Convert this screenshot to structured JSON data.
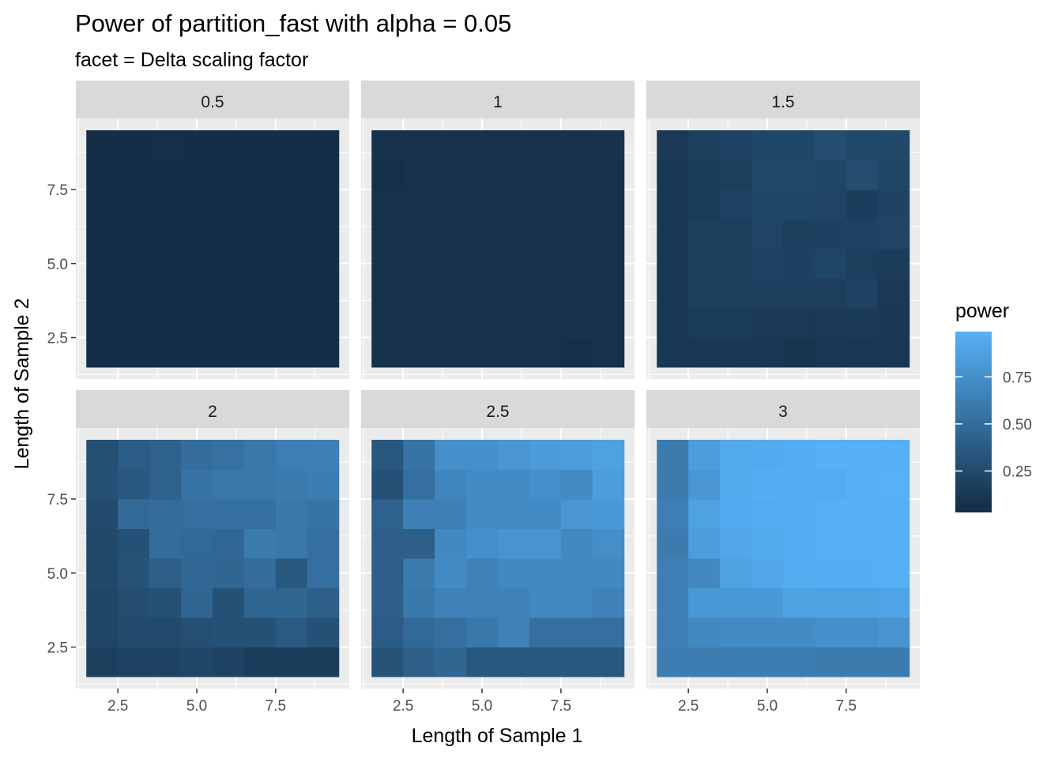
{
  "chart_data": {
    "type": "heatmap",
    "title": "Power of partition_fast with alpha = 0.05",
    "subtitle": "facet = Delta scaling factor",
    "xlabel": "Length of Sample 1",
    "ylabel": "Length of Sample 2",
    "x_ticks": [
      "2.5",
      "5.0",
      "7.5"
    ],
    "y_ticks": [
      "2.5",
      "5.0",
      "7.5"
    ],
    "x_values": [
      2,
      3,
      4,
      5,
      6,
      7,
      8,
      9
    ],
    "y_values": [
      2,
      3,
      4,
      5,
      6,
      7,
      8,
      9
    ],
    "xlim": [
      1.5,
      9.5
    ],
    "ylim": [
      1.5,
      9.5
    ],
    "legend": {
      "title": "power",
      "ticks": [
        "0.25",
        "0.50",
        "0.75"
      ],
      "low_color": "#132B43",
      "high_color": "#56B1F7",
      "range": [
        0.03,
        0.99
      ],
      "placement": "right"
    },
    "facet_order": [
      "0.5",
      "1",
      "1.5",
      "2",
      "2.5",
      "3"
    ],
    "facets": [
      {
        "label": "0.5",
        "z": [
          [
            0.05,
            0.05,
            0.05,
            0.05,
            0.05,
            0.05,
            0.05,
            0.05
          ],
          [
            0.05,
            0.05,
            0.05,
            0.05,
            0.05,
            0.05,
            0.05,
            0.05
          ],
          [
            0.05,
            0.05,
            0.05,
            0.05,
            0.05,
            0.05,
            0.05,
            0.05
          ],
          [
            0.05,
            0.05,
            0.05,
            0.05,
            0.05,
            0.05,
            0.05,
            0.05
          ],
          [
            0.05,
            0.05,
            0.05,
            0.05,
            0.05,
            0.05,
            0.05,
            0.05
          ],
          [
            0.05,
            0.05,
            0.05,
            0.05,
            0.05,
            0.05,
            0.05,
            0.05
          ],
          [
            0.05,
            0.05,
            0.05,
            0.05,
            0.05,
            0.05,
            0.05,
            0.05
          ],
          [
            0.05,
            0.05,
            0.06,
            0.05,
            0.05,
            0.05,
            0.05,
            0.05
          ]
        ]
      },
      {
        "label": "1",
        "z": [
          [
            0.07,
            0.08,
            0.07,
            0.07,
            0.07,
            0.07,
            0.06,
            0.07
          ],
          [
            0.08,
            0.08,
            0.07,
            0.07,
            0.08,
            0.07,
            0.08,
            0.07
          ],
          [
            0.07,
            0.07,
            0.07,
            0.07,
            0.08,
            0.07,
            0.07,
            0.07
          ],
          [
            0.07,
            0.08,
            0.08,
            0.08,
            0.07,
            0.08,
            0.07,
            0.07
          ],
          [
            0.07,
            0.07,
            0.07,
            0.09,
            0.09,
            0.07,
            0.07,
            0.07
          ],
          [
            0.07,
            0.07,
            0.07,
            0.08,
            0.08,
            0.08,
            0.07,
            0.07
          ],
          [
            0.06,
            0.07,
            0.08,
            0.09,
            0.09,
            0.09,
            0.08,
            0.07
          ],
          [
            0.08,
            0.08,
            0.08,
            0.08,
            0.08,
            0.08,
            0.08,
            0.09
          ]
        ]
      },
      {
        "label": "1.5",
        "z": [
          [
            0.12,
            0.12,
            0.12,
            0.12,
            0.1,
            0.11,
            0.11,
            0.11
          ],
          [
            0.12,
            0.15,
            0.15,
            0.14,
            0.13,
            0.13,
            0.14,
            0.12
          ],
          [
            0.12,
            0.17,
            0.17,
            0.17,
            0.17,
            0.17,
            0.2,
            0.13
          ],
          [
            0.12,
            0.17,
            0.17,
            0.2,
            0.19,
            0.22,
            0.17,
            0.15
          ],
          [
            0.12,
            0.17,
            0.17,
            0.21,
            0.17,
            0.19,
            0.2,
            0.21
          ],
          [
            0.12,
            0.15,
            0.2,
            0.22,
            0.22,
            0.21,
            0.16,
            0.2
          ],
          [
            0.12,
            0.15,
            0.17,
            0.23,
            0.23,
            0.22,
            0.27,
            0.22
          ],
          [
            0.13,
            0.17,
            0.2,
            0.22,
            0.22,
            0.27,
            0.23,
            0.24
          ]
        ]
      },
      {
        "label": "2",
        "z": [
          [
            0.18,
            0.2,
            0.2,
            0.22,
            0.2,
            0.15,
            0.15,
            0.15
          ],
          [
            0.22,
            0.25,
            0.25,
            0.28,
            0.3,
            0.3,
            0.36,
            0.3
          ],
          [
            0.22,
            0.27,
            0.3,
            0.45,
            0.3,
            0.45,
            0.45,
            0.4
          ],
          [
            0.24,
            0.32,
            0.4,
            0.46,
            0.45,
            0.5,
            0.35,
            0.52
          ],
          [
            0.24,
            0.3,
            0.5,
            0.48,
            0.46,
            0.6,
            0.58,
            0.52
          ],
          [
            0.25,
            0.48,
            0.5,
            0.52,
            0.52,
            0.52,
            0.58,
            0.55
          ],
          [
            0.3,
            0.35,
            0.42,
            0.55,
            0.58,
            0.58,
            0.6,
            0.62
          ],
          [
            0.28,
            0.38,
            0.42,
            0.5,
            0.53,
            0.58,
            0.63,
            0.64
          ]
        ]
      },
      {
        "label": "2.5",
        "z": [
          [
            0.32,
            0.4,
            0.45,
            0.35,
            0.35,
            0.35,
            0.35,
            0.35
          ],
          [
            0.38,
            0.48,
            0.52,
            0.58,
            0.65,
            0.52,
            0.52,
            0.52
          ],
          [
            0.4,
            0.58,
            0.65,
            0.65,
            0.65,
            0.7,
            0.7,
            0.65
          ],
          [
            0.4,
            0.6,
            0.72,
            0.65,
            0.7,
            0.7,
            0.7,
            0.7
          ],
          [
            0.4,
            0.4,
            0.7,
            0.75,
            0.78,
            0.78,
            0.7,
            0.74
          ],
          [
            0.42,
            0.64,
            0.64,
            0.72,
            0.72,
            0.72,
            0.8,
            0.82
          ],
          [
            0.3,
            0.52,
            0.68,
            0.72,
            0.72,
            0.75,
            0.72,
            0.85
          ],
          [
            0.35,
            0.55,
            0.75,
            0.75,
            0.8,
            0.83,
            0.85,
            0.88
          ]
        ]
      },
      {
        "label": "3",
        "z": [
          [
            0.62,
            0.62,
            0.62,
            0.62,
            0.62,
            0.6,
            0.6,
            0.6
          ],
          [
            0.64,
            0.7,
            0.72,
            0.72,
            0.72,
            0.75,
            0.75,
            0.78
          ],
          [
            0.64,
            0.82,
            0.82,
            0.82,
            0.88,
            0.88,
            0.88,
            0.9
          ],
          [
            0.64,
            0.7,
            0.88,
            0.92,
            0.95,
            0.97,
            0.97,
            0.98
          ],
          [
            0.6,
            0.85,
            0.92,
            0.93,
            0.95,
            0.98,
            0.98,
            0.98
          ],
          [
            0.64,
            0.88,
            0.94,
            0.95,
            0.97,
            0.98,
            0.98,
            0.98
          ],
          [
            0.6,
            0.8,
            0.93,
            0.97,
            0.97,
            0.95,
            0.98,
            0.99
          ],
          [
            0.6,
            0.85,
            0.93,
            0.94,
            0.96,
            0.98,
            0.98,
            0.98
          ]
        ]
      }
    ]
  }
}
